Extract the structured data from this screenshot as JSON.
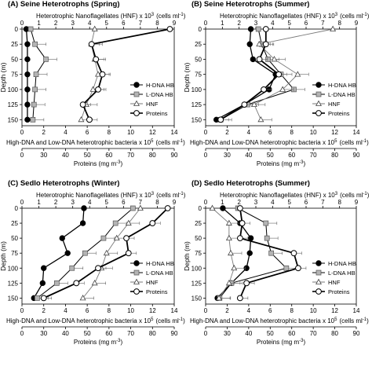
{
  "chart_data": [
    {
      "type": "line",
      "panel": "(A) Seine Heterotrophs (Spring)",
      "top_axis": {
        "label": "Heterotrophic Nanoflagellates (HNF) x 10",
        "sup": "3",
        "unit": "(cells ml",
        "unit_sup": "-1",
        "unit_end": ")",
        "ticks": [
          "0",
          "1",
          "2",
          "3",
          "4",
          "5",
          "6",
          "7",
          "8",
          "9"
        ],
        "range": [
          0,
          9
        ]
      },
      "bottom_axis_1": {
        "label": "High-DNA and Low-DNA heterotrophic bacteria x 10",
        "sup": "5",
        "unit": "(cells ml",
        "unit_sup": "-1",
        "unit_end": ")",
        "ticks": [
          "0",
          "2",
          "4",
          "6",
          "8",
          "10",
          "12",
          "14"
        ],
        "range": [
          0,
          14
        ]
      },
      "bottom_axis_2": {
        "label": "Proteins (mg m",
        "sup": "-3",
        "unit_end": ")",
        "ticks": [
          "0",
          "30",
          "40",
          "50",
          "60",
          "70",
          "80",
          "90"
        ],
        "range": [
          20,
          90
        ]
      },
      "y_axis": {
        "label": "Depth (m)",
        "ticks": [
          "0",
          "25",
          "50",
          "75",
          "100",
          "125",
          "150"
        ],
        "range": [
          0,
          160
        ]
      },
      "legend": [
        "H-DNA HB",
        "L-DNA HB",
        "HNF",
        "Proteins"
      ],
      "series": [
        {
          "name": "H-DNA HB",
          "axis": "bacteria",
          "x": [
            0.4,
            0.5,
            0.5,
            0.5,
            0.5,
            0.5,
            0.5
          ],
          "y": [
            0,
            25,
            50,
            75,
            100,
            125,
            150
          ]
        },
        {
          "name": "L-DNA HB",
          "axis": "bacteria",
          "x": [
            0.8,
            1.2,
            2.2,
            1.3,
            1.2,
            1.1,
            1.0
          ],
          "y": [
            0,
            25,
            50,
            75,
            100,
            125,
            150
          ]
        },
        {
          "name": "HNF",
          "axis": "hnf",
          "x": [
            4.3,
            4.1,
            4.3,
            4.5,
            4.2,
            3.8,
            3.5
          ],
          "y": [
            0,
            25,
            50,
            75,
            100,
            125,
            150
          ]
        },
        {
          "name": "Proteins",
          "axis": "proteins",
          "x": [
            88,
            52,
            54,
            57,
            55,
            48,
            51
          ],
          "y": [
            0,
            25,
            50,
            75,
            100,
            125,
            150
          ]
        }
      ]
    },
    {
      "type": "line",
      "panel": "(B) Seine Heterotrophs (Summer)",
      "top_axis": {
        "label": "Heterotrophic Nanoflagellates (HNF) x 10",
        "sup": "3",
        "unit": "(cells ml",
        "unit_sup": "-1",
        "unit_end": ")",
        "ticks": [
          "0",
          "1",
          "2",
          "3",
          "4",
          "5",
          "6",
          "7",
          "8",
          "9"
        ],
        "range": [
          0,
          9
        ]
      },
      "bottom_axis_1": {
        "label": "High-DNA and Low-DNA heterotrophic bacteria x 10",
        "sup": "5",
        "unit": "(cells ml",
        "unit_sup": "-1",
        "unit_end": ")",
        "ticks": [
          "0",
          "2",
          "4",
          "6",
          "8",
          "10",
          "12",
          "14"
        ],
        "range": [
          0,
          14
        ]
      },
      "bottom_axis_2": {
        "label": "Proteins (mg m",
        "sup": "-3",
        "unit_end": ")",
        "ticks": [
          "0",
          "30",
          "40",
          "50",
          "60",
          "70",
          "80",
          "90"
        ],
        "range": [
          20,
          90
        ]
      },
      "y_axis": {
        "label": "Depth (m)",
        "ticks": [
          "0",
          "25",
          "50",
          "75",
          "100",
          "125",
          "150"
        ],
        "range": [
          0,
          160
        ]
      },
      "legend": [
        "H-DNA HB",
        "L-DNA HB",
        "HNF",
        "Proteins"
      ],
      "series": [
        {
          "name": "H-DNA HB",
          "axis": "bacteria",
          "x": [
            4.2,
            4.1,
            4.4,
            6.5,
            5.9,
            3.6,
            1.0
          ],
          "y": [
            0,
            25,
            50,
            75,
            100,
            125,
            150
          ]
        },
        {
          "name": "L-DNA HB",
          "axis": "bacteria",
          "x": [
            4.9,
            5.2,
            5.8,
            7.0,
            8.2,
            3.9,
            1.4
          ],
          "y": [
            0,
            25,
            50,
            75,
            100,
            125,
            150
          ]
        },
        {
          "name": "HNF",
          "axis": "hnf",
          "x": [
            7.6,
            3.2,
            4.1,
            5.5,
            4.6,
            2.9,
            3.3
          ],
          "y": [
            0,
            25,
            50,
            75,
            100,
            125,
            150
          ]
        },
        {
          "name": "Proteins",
          "axis": "proteins",
          "x": [
            48,
            48,
            45,
            54,
            47,
            38,
            27
          ],
          "y": [
            0,
            25,
            50,
            75,
            100,
            125,
            150
          ]
        }
      ]
    },
    {
      "type": "line",
      "panel": "(C) Sedlo Heterotrophs (Winter)",
      "top_axis": {
        "label": "Heterotrophic Nanoflagellates (HNF) x 10",
        "sup": "3",
        "unit": "(cells ml",
        "unit_sup": "-1",
        "unit_end": ")",
        "ticks": [
          "0",
          "1",
          "2",
          "3",
          "4",
          "5",
          "6",
          "7",
          "8",
          "9"
        ],
        "range": [
          0,
          9
        ]
      },
      "bottom_axis_1": {
        "label": "High-DNA and Low-DNA heterotrophic bacteria x 10",
        "sup": "5",
        "unit": "(cells ml",
        "unit_sup": "-1",
        "unit_end": ")",
        "ticks": [
          "0",
          "2",
          "4",
          "6",
          "8",
          "10",
          "12",
          "14"
        ],
        "range": [
          0,
          14
        ]
      },
      "bottom_axis_2": {
        "label": "Proteins (mg m",
        "sup": "-3",
        "unit_end": ")",
        "ticks": [
          "0",
          "30",
          "40",
          "50",
          "60",
          "70",
          "80",
          "90"
        ],
        "range": [
          20,
          90
        ]
      },
      "y_axis": {
        "label": "Depth (m)",
        "ticks": [
          "0",
          "25",
          "50",
          "75",
          "100",
          "125",
          "150"
        ],
        "range": [
          0,
          160
        ]
      },
      "legend": [
        "H-DNA HB",
        "L-DNA HB",
        "HNF",
        "Proteins"
      ],
      "series": [
        {
          "name": "H-DNA HB",
          "axis": "bacteria",
          "x": [
            5.7,
            5.6,
            3.7,
            4.2,
            2.0,
            1.9,
            1.1
          ],
          "y": [
            0,
            25,
            50,
            75,
            100,
            125,
            150
          ]
        },
        {
          "name": "L-DNA HB",
          "axis": "bacteria",
          "x": [
            10.2,
            8.6,
            7.5,
            5.8,
            4.6,
            3.2,
            1.4
          ],
          "y": [
            0,
            25,
            50,
            75,
            100,
            125,
            150
          ]
        },
        {
          "name": "HNF",
          "axis": "hnf",
          "x": [
            7.0,
            6.3,
            5.6,
            5.0,
            4.7,
            4.3,
            3.6
          ],
          "y": [
            0,
            25,
            50,
            75,
            100,
            125,
            150
          ]
        },
        {
          "name": "Proteins",
          "axis": "proteins",
          "x": [
            87,
            80,
            68,
            69,
            55,
            45,
            30
          ],
          "y": [
            0,
            25,
            50,
            75,
            100,
            125,
            150
          ]
        }
      ]
    },
    {
      "type": "line",
      "panel": "(D) Sedlo Heterotrophs (Summer)",
      "top_axis": {
        "label": "Heterotrophic Nanoflagellates (HNF) x 10",
        "sup": "3",
        "unit": "(cells ml",
        "unit_sup": "-1",
        "unit_end": ")",
        "ticks": [
          "0",
          "1",
          "2",
          "3",
          "4",
          "5",
          "6",
          "7",
          "8",
          "9"
        ],
        "range": [
          0,
          9
        ]
      },
      "bottom_axis_1": {
        "label": "High-DNA and Low-DNA heterotrophic bacteria x 10",
        "sup": "5",
        "unit": "(cells ml",
        "unit_sup": "-1",
        "unit_end": ")",
        "ticks": [
          "0",
          "2",
          "4",
          "6",
          "8",
          "10",
          "12",
          "14"
        ],
        "range": [
          0,
          14
        ]
      },
      "bottom_axis_2": {
        "label": "Proteins (mg m",
        "sup": "-3",
        "unit_end": ")",
        "ticks": [
          "0",
          "30",
          "40",
          "50",
          "60",
          "70",
          "80",
          "90"
        ],
        "range": [
          20,
          90
        ]
      },
      "y_axis": {
        "label": "Depth (m)",
        "ticks": [
          "0",
          "25",
          "50",
          "75",
          "100",
          "125",
          "150"
        ],
        "range": [
          0,
          160
        ]
      },
      "legend": [
        "H-DNA HB",
        "L-DNA HB",
        "HNF",
        "Proteins"
      ],
      "series": [
        {
          "name": "H-DNA HB",
          "axis": "bacteria",
          "x": [
            1.6,
            3.2,
            4.2,
            4.1,
            3.8,
            2.4,
            1.1
          ],
          "y": [
            0,
            25,
            50,
            75,
            100,
            125,
            150
          ]
        },
        {
          "name": "L-DNA HB",
          "axis": "bacteria",
          "x": [
            3.0,
            5.6,
            5.7,
            6.1,
            7.5,
            2.4,
            1.3
          ],
          "y": [
            0,
            25,
            50,
            75,
            100,
            125,
            150
          ]
        },
        {
          "name": "HNF",
          "axis": "hnf",
          "x": [
            0.4,
            1.4,
            1.4,
            1.5,
            1.7,
            1.4,
            0.8
          ],
          "y": [
            0,
            25,
            50,
            75,
            100,
            125,
            150
          ]
        },
        {
          "name": "Proteins",
          "axis": "proteins",
          "x": [
            36,
            37,
            36,
            61,
            63,
            39,
            36
          ],
          "y": [
            0,
            25,
            50,
            75,
            100,
            125,
            150
          ]
        }
      ]
    }
  ],
  "colors": {
    "h_dna": "#000000",
    "l_dna_fill": "#b4b4b4",
    "axis": "#000000",
    "hnf_line": "#7a7a7a"
  },
  "markers": {
    "H-DNA HB": "filled-circle",
    "L-DNA HB": "grey-square",
    "HNF": "open-triangle",
    "Proteins": "open-circle"
  }
}
